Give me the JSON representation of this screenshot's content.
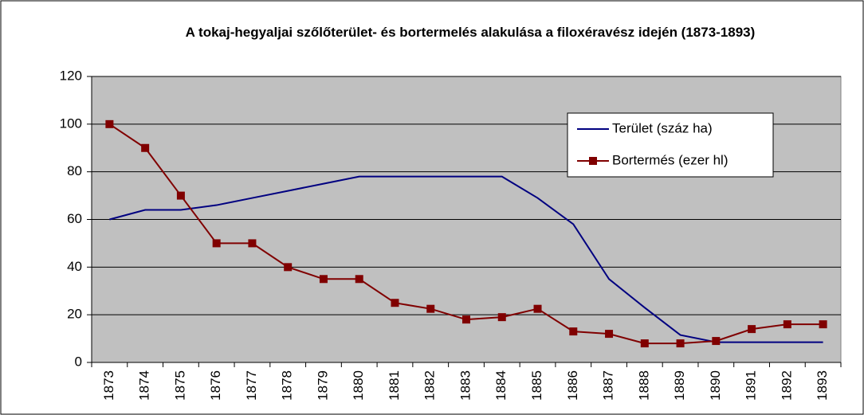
{
  "chart_data": {
    "type": "line",
    "title": "A tokaj-hegyaljai szőlőterület- és bortermelés alakulása a filoxéravész idején (1873-1893)",
    "categories": [
      "1873",
      "1874",
      "1875",
      "1876",
      "1877",
      "1878",
      "1879",
      "1880",
      "1881",
      "1882",
      "1883",
      "1884",
      "1885",
      "1886",
      "1887",
      "1888",
      "1889",
      "1890",
      "1891",
      "1892",
      "1893"
    ],
    "series": [
      {
        "name": "Terület (száz ha)",
        "color": "#000080",
        "marker": false,
        "values": [
          60,
          64,
          64,
          66,
          69,
          72,
          75,
          78,
          78,
          78,
          78,
          78,
          69,
          58,
          35,
          23,
          11.5,
          8.5,
          8.5,
          8.5,
          8.5
        ]
      },
      {
        "name": "Bortermés (ezer hl)",
        "color": "#800000",
        "marker": true,
        "values": [
          100,
          90,
          70,
          50,
          50,
          40,
          35,
          35,
          25,
          22.5,
          18,
          19,
          22.5,
          13,
          12,
          8,
          8,
          9,
          14,
          16,
          16
        ]
      }
    ],
    "ylim": [
      0,
      120
    ],
    "yticks": [
      0,
      20,
      40,
      60,
      80,
      100,
      120
    ],
    "grid": true,
    "legend": "upper right"
  }
}
